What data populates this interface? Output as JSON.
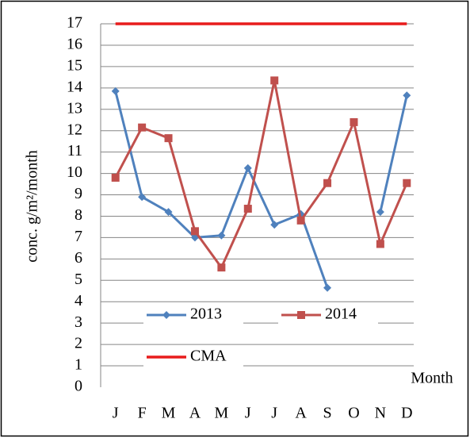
{
  "chart_data": {
    "type": "line",
    "y_label": "conc. g/m²/month",
    "x_label": "Month",
    "categories": [
      "J",
      "F",
      "M",
      "A",
      "M",
      "J",
      "J",
      "A",
      "S",
      "O",
      "N",
      "D"
    ],
    "series": [
      {
        "name": "2013",
        "color": "#4f81bd",
        "marker": "diamond",
        "values": [
          13.85,
          8.9,
          8.2,
          7.0,
          7.1,
          10.25,
          7.6,
          8.1,
          4.65,
          null,
          8.2,
          13.65
        ]
      },
      {
        "name": "2014",
        "color": "#c0504d",
        "marker": "square",
        "values": [
          9.8,
          12.15,
          11.65,
          7.3,
          5.6,
          8.35,
          14.35,
          7.8,
          9.55,
          12.4,
          6.7,
          9.55
        ]
      },
      {
        "name": "CMA",
        "color": "#e81c1c",
        "marker": "none",
        "values": [
          17,
          17,
          17,
          17,
          17,
          17,
          17,
          17,
          17,
          17,
          17,
          17
        ]
      }
    ],
    "ylim": [
      0,
      17
    ],
    "yticks": [
      0,
      1,
      2,
      3,
      4,
      5,
      6,
      7,
      8,
      9,
      10,
      11,
      12,
      13,
      14,
      15,
      16,
      17
    ],
    "grid": true
  }
}
